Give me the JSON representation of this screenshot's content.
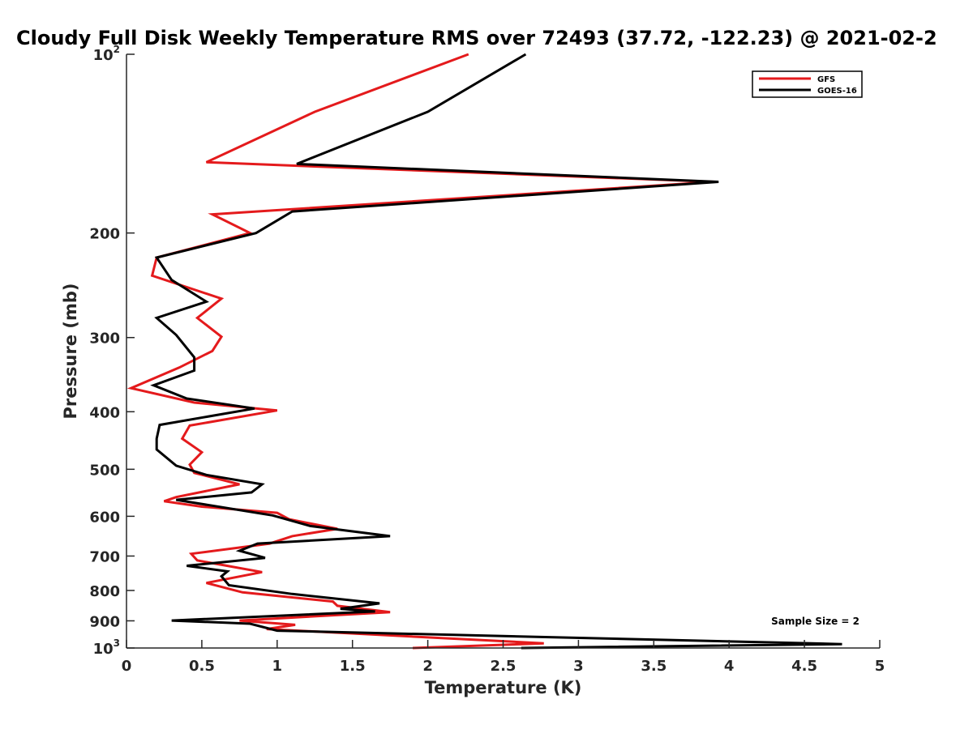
{
  "chart_data": {
    "type": "line",
    "title": "Cloudy Full Disk Weekly Temperature RMS over 72493 (37.72, -122.23) @ 2021-02-2",
    "xlabel": "Temperature (K)",
    "ylabel": "Pressure (mb)",
    "xlim": [
      0,
      5
    ],
    "ylim": [
      100,
      1000
    ],
    "y_scale": "log",
    "y_reversed": true,
    "grid": false,
    "legend_position": "top-right",
    "x_ticks": [
      "0",
      "0.5",
      "1",
      "1.5",
      "2",
      "2.5",
      "3",
      "3.5",
      "4",
      "4.5",
      "5"
    ],
    "y_ticks": [
      {
        "value": 100,
        "base": "10",
        "exp": "2"
      },
      {
        "value": 200,
        "label": "200"
      },
      {
        "value": 300,
        "label": "300"
      },
      {
        "value": 400,
        "label": "400"
      },
      {
        "value": 500,
        "label": "500"
      },
      {
        "value": 600,
        "label": "600"
      },
      {
        "value": 700,
        "label": "700"
      },
      {
        "value": 800,
        "label": "800"
      },
      {
        "value": 900,
        "label": "900"
      },
      {
        "value": 1000,
        "base": "10",
        "exp": "3"
      }
    ],
    "annotation": "Sample Size = 2",
    "series": [
      {
        "name": "GFS",
        "color": "#e41a1c",
        "points": [
          [
            2.27,
            100
          ],
          [
            1.25,
            125
          ],
          [
            0.53,
            152
          ],
          [
            3.9,
            164
          ],
          [
            0.57,
            186
          ],
          [
            0.82,
            200
          ],
          [
            0.2,
            220
          ],
          [
            0.17,
            236
          ],
          [
            0.63,
            258
          ],
          [
            0.47,
            278
          ],
          [
            0.63,
            299
          ],
          [
            0.57,
            316
          ],
          [
            0.35,
            337
          ],
          [
            0.03,
            365
          ],
          [
            0.45,
            386
          ],
          [
            1.0,
            398
          ],
          [
            0.42,
            422
          ],
          [
            0.37,
            444
          ],
          [
            0.5,
            468
          ],
          [
            0.42,
            491
          ],
          [
            0.45,
            507
          ],
          [
            0.75,
            530
          ],
          [
            0.33,
            557
          ],
          [
            0.25,
            566
          ],
          [
            0.5,
            578
          ],
          [
            1.0,
            592
          ],
          [
            1.08,
            607
          ],
          [
            1.4,
            630
          ],
          [
            1.1,
            648
          ],
          [
            0.95,
            667
          ],
          [
            0.43,
            694
          ],
          [
            0.47,
            712
          ],
          [
            0.9,
            745
          ],
          [
            0.53,
            777
          ],
          [
            0.77,
            806
          ],
          [
            1.37,
            835
          ],
          [
            1.4,
            849
          ],
          [
            1.75,
            870
          ],
          [
            0.75,
            899
          ],
          [
            1.12,
            914
          ],
          [
            0.93,
            929
          ],
          [
            2.77,
            982
          ],
          [
            1.9,
            1000
          ]
        ]
      },
      {
        "name": "GOES-16",
        "color": "#000000",
        "points": [
          [
            2.65,
            100
          ],
          [
            2.0,
            125
          ],
          [
            1.13,
            153
          ],
          [
            3.93,
            164
          ],
          [
            1.1,
            184
          ],
          [
            0.86,
            200
          ],
          [
            0.2,
            220
          ],
          [
            0.3,
            240
          ],
          [
            0.53,
            261
          ],
          [
            0.2,
            278
          ],
          [
            0.33,
            297
          ],
          [
            0.45,
            324
          ],
          [
            0.45,
            341
          ],
          [
            0.18,
            361
          ],
          [
            0.4,
            380
          ],
          [
            0.85,
            395
          ],
          [
            0.22,
            421
          ],
          [
            0.2,
            444
          ],
          [
            0.2,
            463
          ],
          [
            0.33,
            493
          ],
          [
            0.53,
            511
          ],
          [
            0.9,
            530
          ],
          [
            0.83,
            547
          ],
          [
            0.33,
            563
          ],
          [
            0.97,
            598
          ],
          [
            1.22,
            623
          ],
          [
            1.75,
            648
          ],
          [
            0.87,
            667
          ],
          [
            0.75,
            686
          ],
          [
            0.92,
            705
          ],
          [
            0.4,
            727
          ],
          [
            0.67,
            743
          ],
          [
            0.63,
            757
          ],
          [
            0.68,
            784
          ],
          [
            1.1,
            811
          ],
          [
            1.68,
            841
          ],
          [
            1.42,
            859
          ],
          [
            1.65,
            868
          ],
          [
            0.3,
            899
          ],
          [
            0.82,
            910
          ],
          [
            1.0,
            935
          ],
          [
            4.75,
            985
          ],
          [
            2.62,
            1000
          ]
        ]
      }
    ]
  }
}
